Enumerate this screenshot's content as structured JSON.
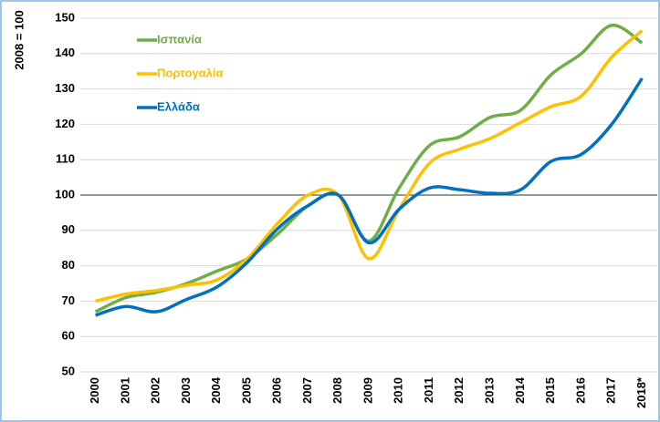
{
  "chart_data": {
    "type": "line",
    "y_label": "2008 = 100",
    "categories": [
      "2000",
      "2001",
      "2002",
      "2003",
      "2004",
      "2005",
      "2006",
      "2007",
      "2008",
      "2009",
      "2010",
      "2011",
      "2012",
      "2013",
      "2014",
      "2015",
      "2016",
      "2017",
      "2018*"
    ],
    "series": [
      {
        "name": "Ισπανία",
        "color": "#70ad47",
        "values": [
          67,
          71,
          72.5,
          75,
          78.5,
          82,
          89,
          97,
          100,
          87,
          102,
          114,
          116.5,
          122,
          124,
          134,
          140,
          148,
          143
        ]
      },
      {
        "name": "Πορτογαλία",
        "color": "#ffc000",
        "values": [
          70,
          72,
          73,
          74.5,
          76,
          82,
          92,
          100,
          100,
          82,
          96,
          109,
          113,
          116,
          120.5,
          125,
          128,
          139,
          146.5
        ]
      },
      {
        "name": "Ελλάδα",
        "color": "#0070c0",
        "values": [
          66,
          68.5,
          67,
          70.5,
          74,
          81,
          90.5,
          97,
          100,
          86.5,
          96,
          102,
          101.5,
          100.5,
          101.5,
          109.5,
          111.5,
          120,
          133
        ]
      }
    ],
    "ylim": [
      50,
      150
    ],
    "yticks": [
      50,
      60,
      70,
      80,
      90,
      100,
      110,
      120,
      130,
      140,
      150
    ],
    "reference_line": 100,
    "grid": true,
    "legend": "top-left"
  }
}
